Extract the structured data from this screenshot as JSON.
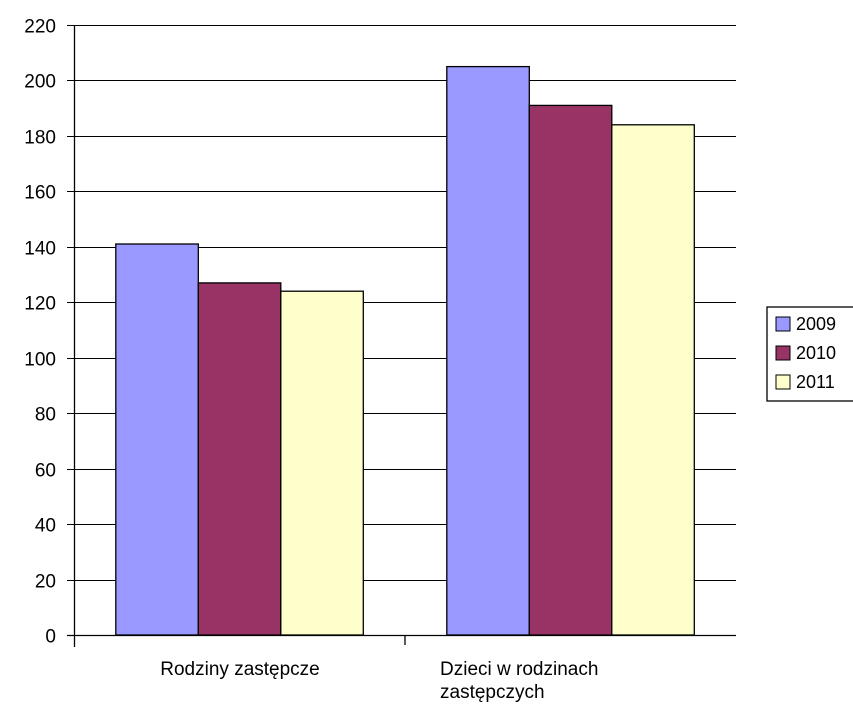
{
  "chart_data": {
    "type": "bar",
    "categories": [
      [
        "Rodziny zastępcze"
      ],
      [
        "Dzieci w rodzinach",
        "zastępczych"
      ]
    ],
    "series": [
      {
        "name": "2009",
        "values": [
          141,
          205
        ],
        "color": "#9999FF"
      },
      {
        "name": "2010",
        "values": [
          127,
          191
        ],
        "color": "#993366"
      },
      {
        "name": "2011",
        "values": [
          124,
          184
        ],
        "color": "#FFFFCC"
      }
    ],
    "ylim": [
      0,
      220
    ],
    "yticks": [
      0,
      20,
      40,
      60,
      80,
      100,
      120,
      140,
      160,
      180,
      200,
      220
    ],
    "grid": true,
    "legend_position": "right"
  }
}
